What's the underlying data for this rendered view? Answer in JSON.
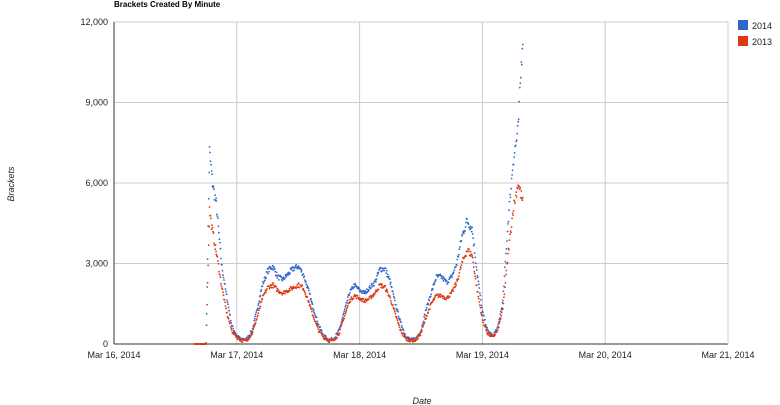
{
  "chart_data": {
    "type": "scatter",
    "title": "Brackets Created By Minute",
    "xlabel": "Date",
    "ylabel": "Brackets",
    "x_range": [
      "2014-03-16",
      "2014-03-21"
    ],
    "x_ticks": [
      "Mar 16, 2014",
      "Mar 17, 2014",
      "Mar 18, 2014",
      "Mar 19, 2014",
      "Mar 20, 2014",
      "Mar 21, 2014"
    ],
    "ylim": [
      0,
      12000
    ],
    "y_ticks": [
      "0",
      "3,000",
      "6,000",
      "9,000",
      "12,000"
    ],
    "grid": true,
    "legend_position": "right",
    "series": [
      {
        "name": "2014",
        "color": "#3366cc",
        "points": [
          [
            "2014-03-16 15:40",
            0
          ],
          [
            "2014-03-16 18:00",
            0
          ],
          [
            "2014-03-16 18:40",
            7200
          ],
          [
            "2014-03-16 19:15",
            6000
          ],
          [
            "2014-03-16 20:00",
            5200
          ],
          [
            "2014-03-16 21:00",
            3000
          ],
          [
            "2014-03-16 22:00",
            1800
          ],
          [
            "2014-03-16 23:00",
            700
          ],
          [
            "2014-03-17 00:00",
            300
          ],
          [
            "2014-03-17 01:00",
            150
          ],
          [
            "2014-03-17 02:00",
            200
          ],
          [
            "2014-03-17 03:00",
            500
          ],
          [
            "2014-03-17 04:00",
            1300
          ],
          [
            "2014-03-17 05:00",
            2200
          ],
          [
            "2014-03-17 06:00",
            2700
          ],
          [
            "2014-03-17 07:00",
            2900
          ],
          [
            "2014-03-17 08:00",
            2500
          ],
          [
            "2014-03-17 09:00",
            2400
          ],
          [
            "2014-03-17 10:00",
            2600
          ],
          [
            "2014-03-17 11:00",
            2800
          ],
          [
            "2014-03-17 12:00",
            2900
          ],
          [
            "2014-03-17 13:00",
            2600
          ],
          [
            "2014-03-17 14:00",
            2000
          ],
          [
            "2014-03-17 15:00",
            1300
          ],
          [
            "2014-03-17 16:00",
            700
          ],
          [
            "2014-03-17 17:00",
            300
          ],
          [
            "2014-03-17 18:00",
            150
          ],
          [
            "2014-03-17 19:00",
            200
          ],
          [
            "2014-03-17 20:00",
            500
          ],
          [
            "2014-03-17 21:00",
            1200
          ],
          [
            "2014-03-17 22:00",
            1900
          ],
          [
            "2014-03-17 23:00",
            2200
          ],
          [
            "2014-03-18 00:00",
            2000
          ],
          [
            "2014-03-18 01:00",
            1900
          ],
          [
            "2014-03-18 02:00",
            2100
          ],
          [
            "2014-03-18 03:00",
            2300
          ],
          [
            "2014-03-18 04:00",
            2800
          ],
          [
            "2014-03-18 05:00",
            2800
          ],
          [
            "2014-03-18 06:00",
            2300
          ],
          [
            "2014-03-18 07:00",
            1500
          ],
          [
            "2014-03-18 08:00",
            800
          ],
          [
            "2014-03-18 09:00",
            300
          ],
          [
            "2014-03-18 10:00",
            150
          ],
          [
            "2014-03-18 11:00",
            200
          ],
          [
            "2014-03-18 12:00",
            500
          ],
          [
            "2014-03-18 13:00",
            1300
          ],
          [
            "2014-03-18 14:00",
            1900
          ],
          [
            "2014-03-18 15:00",
            2500
          ],
          [
            "2014-03-18 16:00",
            2500
          ],
          [
            "2014-03-18 17:00",
            2300
          ],
          [
            "2014-03-18 18:00",
            2500
          ],
          [
            "2014-03-18 19:00",
            3000
          ],
          [
            "2014-03-18 20:00",
            4000
          ],
          [
            "2014-03-18 21:00",
            4600
          ],
          [
            "2014-03-18 22:00",
            4300
          ],
          [
            "2014-03-18 23:00",
            2600
          ],
          [
            "2014-03-19 00:00",
            1200
          ],
          [
            "2014-03-19 01:00",
            500
          ],
          [
            "2014-03-19 02:00",
            300
          ],
          [
            "2014-03-19 03:00",
            600
          ],
          [
            "2014-03-19 04:00",
            1600
          ],
          [
            "2014-03-19 05:00",
            4500
          ],
          [
            "2014-03-19 06:00",
            6800
          ],
          [
            "2014-03-19 07:00",
            8000
          ],
          [
            "2014-03-19 08:00",
            12000
          ]
        ]
      },
      {
        "name": "2013",
        "color": "#dc3912",
        "points": [
          [
            "2014-03-16 15:40",
            0
          ],
          [
            "2014-03-16 18:00",
            0
          ],
          [
            "2014-03-16 18:40",
            5000
          ],
          [
            "2014-03-16 19:15",
            4200
          ],
          [
            "2014-03-16 20:00",
            3400
          ],
          [
            "2014-03-16 21:00",
            2200
          ],
          [
            "2014-03-16 22:00",
            1200
          ],
          [
            "2014-03-16 23:00",
            500
          ],
          [
            "2014-03-17 00:00",
            250
          ],
          [
            "2014-03-17 01:00",
            120
          ],
          [
            "2014-03-17 02:00",
            150
          ],
          [
            "2014-03-17 03:00",
            400
          ],
          [
            "2014-03-17 04:00",
            1000
          ],
          [
            "2014-03-17 05:00",
            1700
          ],
          [
            "2014-03-17 06:00",
            2100
          ],
          [
            "2014-03-17 07:00",
            2200
          ],
          [
            "2014-03-17 08:00",
            2000
          ],
          [
            "2014-03-17 09:00",
            1900
          ],
          [
            "2014-03-17 10:00",
            2000
          ],
          [
            "2014-03-17 11:00",
            2100
          ],
          [
            "2014-03-17 12:00",
            2200
          ],
          [
            "2014-03-17 13:00",
            2100
          ],
          [
            "2014-03-17 14:00",
            1600
          ],
          [
            "2014-03-17 15:00",
            1000
          ],
          [
            "2014-03-17 16:00",
            500
          ],
          [
            "2014-03-17 17:00",
            250
          ],
          [
            "2014-03-17 18:00",
            120
          ],
          [
            "2014-03-17 19:00",
            150
          ],
          [
            "2014-03-17 20:00",
            400
          ],
          [
            "2014-03-17 21:00",
            1000
          ],
          [
            "2014-03-17 22:00",
            1600
          ],
          [
            "2014-03-17 23:00",
            1800
          ],
          [
            "2014-03-18 00:00",
            1700
          ],
          [
            "2014-03-18 01:00",
            1600
          ],
          [
            "2014-03-18 02:00",
            1700
          ],
          [
            "2014-03-18 03:00",
            1900
          ],
          [
            "2014-03-18 04:00",
            2200
          ],
          [
            "2014-03-18 05:00",
            2100
          ],
          [
            "2014-03-18 06:00",
            1700
          ],
          [
            "2014-03-18 07:00",
            1100
          ],
          [
            "2014-03-18 08:00",
            500
          ],
          [
            "2014-03-18 09:00",
            200
          ],
          [
            "2014-03-18 10:00",
            120
          ],
          [
            "2014-03-18 11:00",
            150
          ],
          [
            "2014-03-18 12:00",
            400
          ],
          [
            "2014-03-18 13:00",
            1000
          ],
          [
            "2014-03-18 14:00",
            1500
          ],
          [
            "2014-03-18 15:00",
            1800
          ],
          [
            "2014-03-18 16:00",
            1800
          ],
          [
            "2014-03-18 17:00",
            1700
          ],
          [
            "2014-03-18 18:00",
            1900
          ],
          [
            "2014-03-18 19:00",
            2300
          ],
          [
            "2014-03-18 20:00",
            3000
          ],
          [
            "2014-03-18 21:00",
            3500
          ],
          [
            "2014-03-18 22:00",
            3300
          ],
          [
            "2014-03-18 23:00",
            2000
          ],
          [
            "2014-03-19 00:00",
            900
          ],
          [
            "2014-03-19 01:00",
            400
          ],
          [
            "2014-03-19 02:00",
            250
          ],
          [
            "2014-03-19 03:00",
            500
          ],
          [
            "2014-03-19 04:00",
            1300
          ],
          [
            "2014-03-19 05:00",
            3300
          ],
          [
            "2014-03-19 06:00",
            5000
          ],
          [
            "2014-03-19 07:00",
            6000
          ],
          [
            "2014-03-19 08:00",
            5200
          ]
        ]
      }
    ]
  }
}
